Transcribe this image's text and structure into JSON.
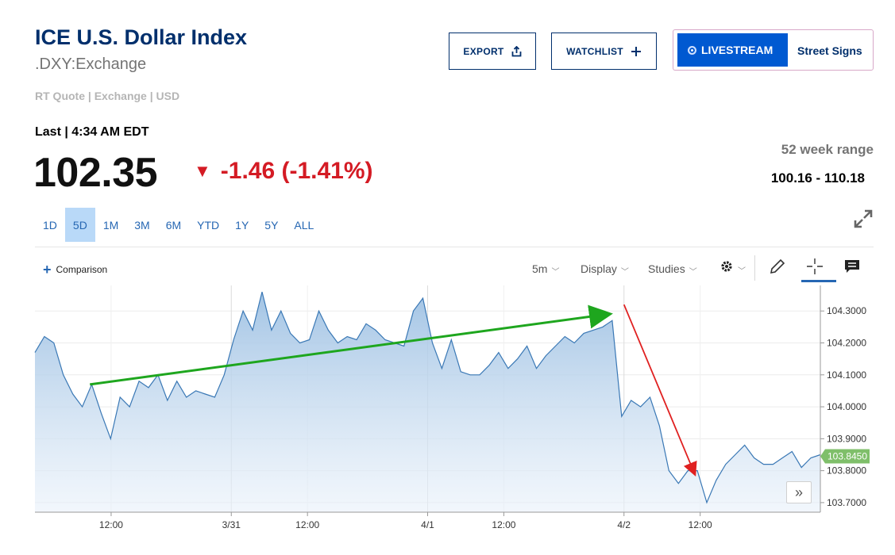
{
  "header": {
    "title": "ICE U.S. Dollar Index",
    "symbol": ".DXY:Exchange",
    "quote_meta": "RT Quote | Exchange | USD"
  },
  "buttons": {
    "export": "EXPORT",
    "watchlist": "WATCHLIST",
    "livestream": "LIVESTREAM",
    "street_signs": "Street Signs"
  },
  "quote": {
    "last_label": "Last | 4:34 AM EDT",
    "last_value": "102.35",
    "change": "-1.46 (-1.41%)",
    "direction": "down",
    "week_range_label": "52 week range",
    "week_range_value": "100.16 - 110.18"
  },
  "ranges": [
    {
      "label": "1D",
      "active": false
    },
    {
      "label": "5D",
      "active": true
    },
    {
      "label": "1M",
      "active": false
    },
    {
      "label": "3M",
      "active": false
    },
    {
      "label": "6M",
      "active": false
    },
    {
      "label": "YTD",
      "active": false
    },
    {
      "label": "1Y",
      "active": false
    },
    {
      "label": "5Y",
      "active": false
    },
    {
      "label": "ALL",
      "active": false
    }
  ],
  "toolbar": {
    "comparison": "Comparison",
    "interval": "5m",
    "display": "Display",
    "studies": "Studies",
    "icons": [
      "gear-icon",
      "pencil-icon",
      "crosshair-icon",
      "comment-icon"
    ]
  },
  "colors": {
    "brand": "#002f6c",
    "link": "#2667b3",
    "down": "#d41b24",
    "live": "#0059d1",
    "line": "#3a78b5",
    "last_badge": "#7fbf6a",
    "green_arrow": "#1ea61e",
    "red_arrow": "#e02020"
  },
  "chart_data": {
    "type": "area",
    "ylim": [
      103.67,
      104.38
    ],
    "y_ticks": [
      "104.3000",
      "104.2000",
      "104.1000",
      "104.0000",
      "103.9000",
      "103.8000",
      "103.7000"
    ],
    "x_ticks": [
      "12:00",
      "3/31",
      "12:00",
      "4/1",
      "12:00",
      "4/2",
      "12:00"
    ],
    "last_price_label": "103.8450",
    "series": [
      {
        "values": [
          104.17,
          104.22,
          104.2,
          104.1,
          104.04,
          104.0,
          104.07,
          103.98,
          103.9,
          104.03,
          104.0,
          104.08,
          104.06,
          104.1,
          104.02,
          104.08,
          104.03,
          104.05,
          104.04,
          104.03,
          104.1,
          104.21,
          104.3,
          104.24,
          104.36,
          104.24,
          104.3,
          104.23,
          104.2,
          104.21,
          104.3,
          104.24,
          104.2,
          104.22,
          104.21,
          104.26,
          104.24,
          104.21,
          104.2,
          104.19,
          104.3,
          104.34,
          104.2,
          104.12,
          104.21,
          104.11,
          104.1,
          104.1,
          104.13,
          104.17,
          104.12,
          104.15,
          104.19,
          104.12,
          104.16,
          104.19,
          104.22,
          104.2,
          104.23,
          104.24,
          104.25,
          104.27,
          103.97,
          104.02,
          104.0,
          104.03,
          103.94,
          103.8,
          103.76,
          103.8,
          103.8,
          103.7,
          103.77,
          103.82,
          103.85,
          103.88,
          103.84,
          103.82,
          103.82,
          103.84,
          103.86,
          103.81,
          103.84,
          103.85
        ]
      }
    ],
    "annotations": [
      {
        "type": "arrow",
        "color": "green",
        "from": [
          0.07,
          104.07
        ],
        "to": [
          0.73,
          104.29
        ]
      },
      {
        "type": "arrow",
        "color": "red",
        "from": [
          0.75,
          104.32
        ],
        "to": [
          0.84,
          103.79
        ]
      }
    ]
  }
}
